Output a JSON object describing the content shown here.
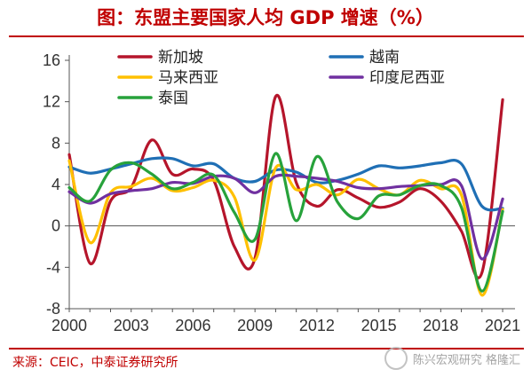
{
  "title": "图：东盟主要国家人均 GDP 增速（%）",
  "source": "来源：CEIC，中泰证券研究所",
  "watermark": "陈兴宏观研究 格隆汇",
  "chart_data": {
    "type": "line",
    "x": [
      2000,
      2001,
      2002,
      2003,
      2004,
      2005,
      2006,
      2007,
      2008,
      2009,
      2010,
      2011,
      2012,
      2013,
      2014,
      2015,
      2016,
      2017,
      2018,
      2019,
      2020,
      2021
    ],
    "xticks": [
      2000,
      2003,
      2006,
      2009,
      2012,
      2015,
      2018,
      2021
    ],
    "xlim": [
      2000,
      2021.6
    ],
    "yticks": [
      -8,
      -4,
      0,
      4,
      8,
      12,
      16
    ],
    "ylim": [
      -8,
      16
    ],
    "grid": false,
    "legend_position": "top",
    "series": [
      {
        "name": "新加坡",
        "color": "#b5152b",
        "values": [
          6.9,
          -3.6,
          2.4,
          3.7,
          8.3,
          5.0,
          5.5,
          4.4,
          -2.0,
          -3.1,
          12.5,
          4.2,
          1.9,
          3.5,
          2.7,
          1.8,
          2.3,
          3.6,
          2.4,
          -0.5,
          -4.5,
          12.2
        ]
      },
      {
        "name": "越南",
        "color": "#1f6fb5",
        "values": [
          5.7,
          5.1,
          5.5,
          6.0,
          6.5,
          6.5,
          5.8,
          6.0,
          4.6,
          4.3,
          5.4,
          5.2,
          4.2,
          4.4,
          5.0,
          5.8,
          5.6,
          5.8,
          6.1,
          6.0,
          1.9,
          1.7
        ]
      },
      {
        "name": "马来西亚",
        "color": "#ffc000",
        "values": [
          6.3,
          -1.6,
          3.2,
          3.8,
          4.6,
          3.4,
          3.7,
          4.4,
          2.8,
          -3.3,
          5.6,
          3.5,
          4.0,
          3.0,
          4.5,
          3.6,
          3.0,
          4.4,
          3.6,
          3.0,
          -6.7,
          1.6
        ]
      },
      {
        "name": "印度尼西亚",
        "color": "#7030a0",
        "values": [
          3.3,
          2.2,
          3.1,
          3.4,
          3.6,
          4.2,
          4.1,
          4.8,
          4.6,
          3.2,
          4.8,
          4.8,
          4.6,
          4.3,
          3.7,
          3.6,
          3.8,
          3.9,
          4.0,
          3.9,
          -3.2,
          2.6
        ]
      },
      {
        "name": "泰国",
        "color": "#27a23b",
        "values": [
          3.7,
          2.4,
          5.4,
          6.1,
          5.0,
          3.6,
          4.2,
          4.9,
          1.3,
          -1.3,
          7.0,
          0.5,
          6.7,
          2.3,
          0.7,
          2.9,
          3.0,
          3.9,
          3.9,
          1.8,
          -6.3,
          1.4
        ]
      }
    ]
  }
}
